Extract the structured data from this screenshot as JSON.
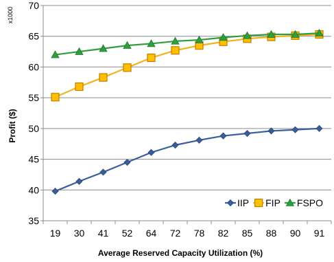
{
  "chart_data": {
    "type": "line",
    "categories": [
      "19",
      "30",
      "41",
      "52",
      "64",
      "72",
      "78",
      "82",
      "85",
      "88",
      "90",
      "91"
    ],
    "series": [
      {
        "name": "IIP",
        "values": [
          39.8,
          41.4,
          42.9,
          44.5,
          46.1,
          47.3,
          48.1,
          48.8,
          49.2,
          49.6,
          49.8,
          50.0
        ],
        "color": "#3A5E9C",
        "marker": "diamond"
      },
      {
        "name": "FIP",
        "values": [
          55.1,
          56.8,
          58.3,
          59.9,
          61.5,
          62.7,
          63.5,
          64.1,
          64.6,
          64.9,
          65.1,
          65.3
        ],
        "color": "#F0B41C",
        "marker": "square"
      },
      {
        "name": "FSPO",
        "values": [
          62.0,
          62.5,
          63.0,
          63.5,
          63.8,
          64.2,
          64.4,
          64.8,
          65.1,
          65.3,
          65.3,
          65.5
        ],
        "color": "#2E9E3E",
        "marker": "triangle"
      }
    ],
    "ylim": [
      35,
      70
    ],
    "yticks": [
      "35",
      "40",
      "45",
      "50",
      "55",
      "60",
      "65",
      "70"
    ],
    "ylabel": "Profit ($)",
    "xlabel": "Average Reserved Capacity Utilization (%)",
    "y_multiplier_label": "x1000",
    "grid": "horizontal",
    "legend": "bottom-right"
  }
}
